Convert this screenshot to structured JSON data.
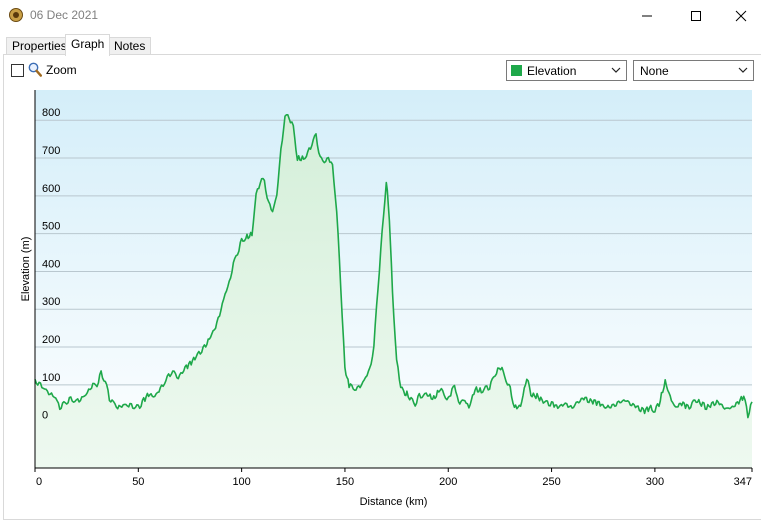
{
  "window": {
    "title": "06 Dec 2021"
  },
  "tabs": [
    {
      "label": "Properties"
    },
    {
      "label": "Graph"
    },
    {
      "label": "Notes"
    }
  ],
  "toolbar": {
    "zoom_label": "Zoom",
    "zoom_checked": false,
    "series_select": "Elevation",
    "series_color": "#1ea84a",
    "second_select": "None"
  },
  "chart_data": {
    "type": "area",
    "xlabel": "Distance  (km)",
    "ylabel": "Elevation (m)",
    "xlim": [
      0,
      347
    ],
    "ylim": [
      -120,
      880
    ],
    "x_ticks": [
      0,
      50,
      100,
      150,
      200,
      250,
      300,
      347
    ],
    "y_ticks": [
      0,
      100,
      200,
      300,
      400,
      500,
      600,
      700,
      800
    ],
    "grid": true,
    "colors": {
      "line": "#1ea84a",
      "fill_top": "#d4efd9",
      "fill_bottom": "#eef9f0",
      "bg_top": "#d4eef9",
      "bg_bottom": "#ffffff"
    },
    "series": [
      {
        "name": "Elevation",
        "x": [
          0,
          2,
          4,
          6,
          8,
          10,
          12,
          14,
          16,
          18,
          20,
          24,
          28,
          30,
          32,
          34,
          36,
          40,
          44,
          46,
          50,
          52,
          55,
          58,
          62,
          66,
          70,
          72,
          75,
          78,
          82,
          85,
          88,
          90,
          92,
          94,
          96,
          98,
          100,
          102,
          105,
          107,
          109,
          111,
          113,
          115,
          117,
          119,
          121,
          123,
          125,
          127,
          130,
          132,
          134,
          136,
          138,
          140,
          142,
          144,
          146,
          148,
          150,
          151,
          152,
          154,
          156,
          158,
          160,
          162,
          164,
          166,
          168,
          170,
          171,
          172,
          173,
          175,
          177,
          179,
          180,
          182,
          184,
          186,
          190,
          193,
          196,
          200,
          203,
          205,
          208,
          210,
          213,
          216,
          220,
          222,
          224,
          226,
          228,
          230,
          232,
          235,
          238,
          240,
          243,
          246,
          250,
          253,
          256,
          260,
          265,
          270,
          273,
          276,
          280,
          285,
          290,
          295,
          298,
          300,
          302,
          305,
          308,
          310,
          313,
          316,
          320,
          325,
          330,
          335,
          340,
          343,
          345,
          347
        ],
        "values": [
          115,
          100,
          95,
          80,
          75,
          65,
          40,
          50,
          58,
          62,
          55,
          70,
          100,
          100,
          130,
          110,
          65,
          40,
          48,
          45,
          40,
          55,
          75,
          70,
          100,
          135,
          120,
          140,
          155,
          175,
          200,
          230,
          260,
          300,
          340,
          370,
          420,
          450,
          480,
          490,
          500,
          600,
          640,
          640,
          580,
          560,
          600,
          720,
          810,
          810,
          780,
          700,
          700,
          710,
          740,
          760,
          700,
          690,
          700,
          680,
          560,
          360,
          140,
          120,
          100,
          90,
          90,
          100,
          120,
          140,
          200,
          360,
          500,
          640,
          580,
          480,
          350,
          160,
          100,
          70,
          80,
          60,
          50,
          70,
          75,
          65,
          90,
          60,
          100,
          50,
          60,
          40,
          90,
          85,
          95,
          120,
          140,
          145,
          110,
          90,
          40,
          45,
          120,
          75,
          70,
          55,
          50,
          40,
          50,
          40,
          65,
          55,
          50,
          40,
          45,
          60,
          45,
          30,
          40,
          30,
          50,
          110,
          60,
          40,
          50,
          40,
          60,
          40,
          55,
          35,
          50,
          70,
          20,
          55
        ]
      }
    ]
  }
}
